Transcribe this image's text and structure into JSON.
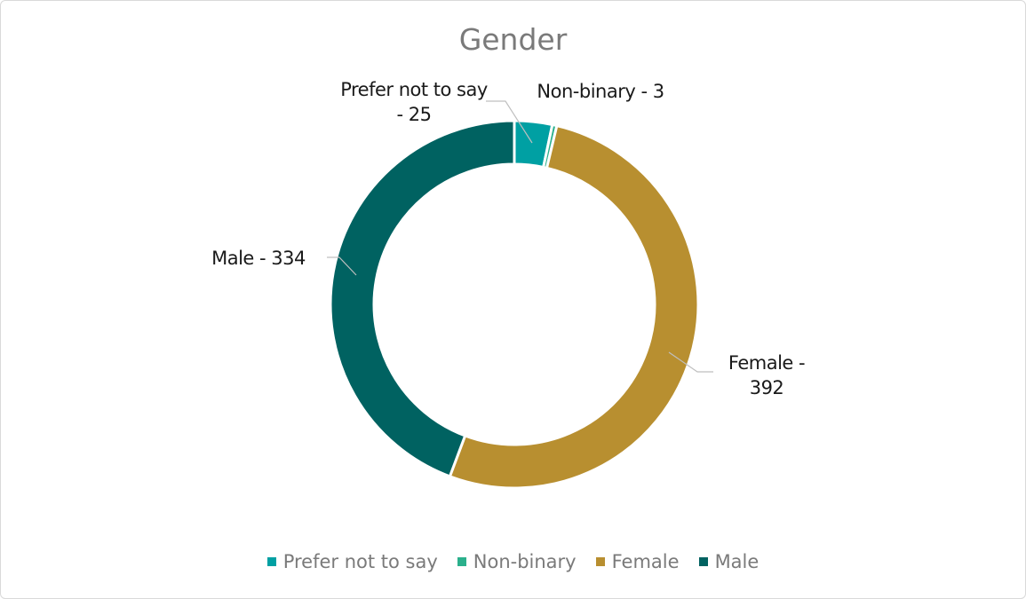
{
  "chart_data": {
    "type": "donut",
    "title": "Gender",
    "categories": [
      "Prefer not to say",
      "Non-binary",
      "Female",
      "Male"
    ],
    "values": [
      25,
      3,
      392,
      334
    ],
    "value_labels": [
      "Prefer not to say - 25",
      "Non-binary - 3",
      "Female - 392",
      "Male - 334"
    ],
    "colors": [
      "#00a0a3",
      "#2bb08c",
      "#b88f30",
      "#006261"
    ],
    "legend": "bottom"
  }
}
